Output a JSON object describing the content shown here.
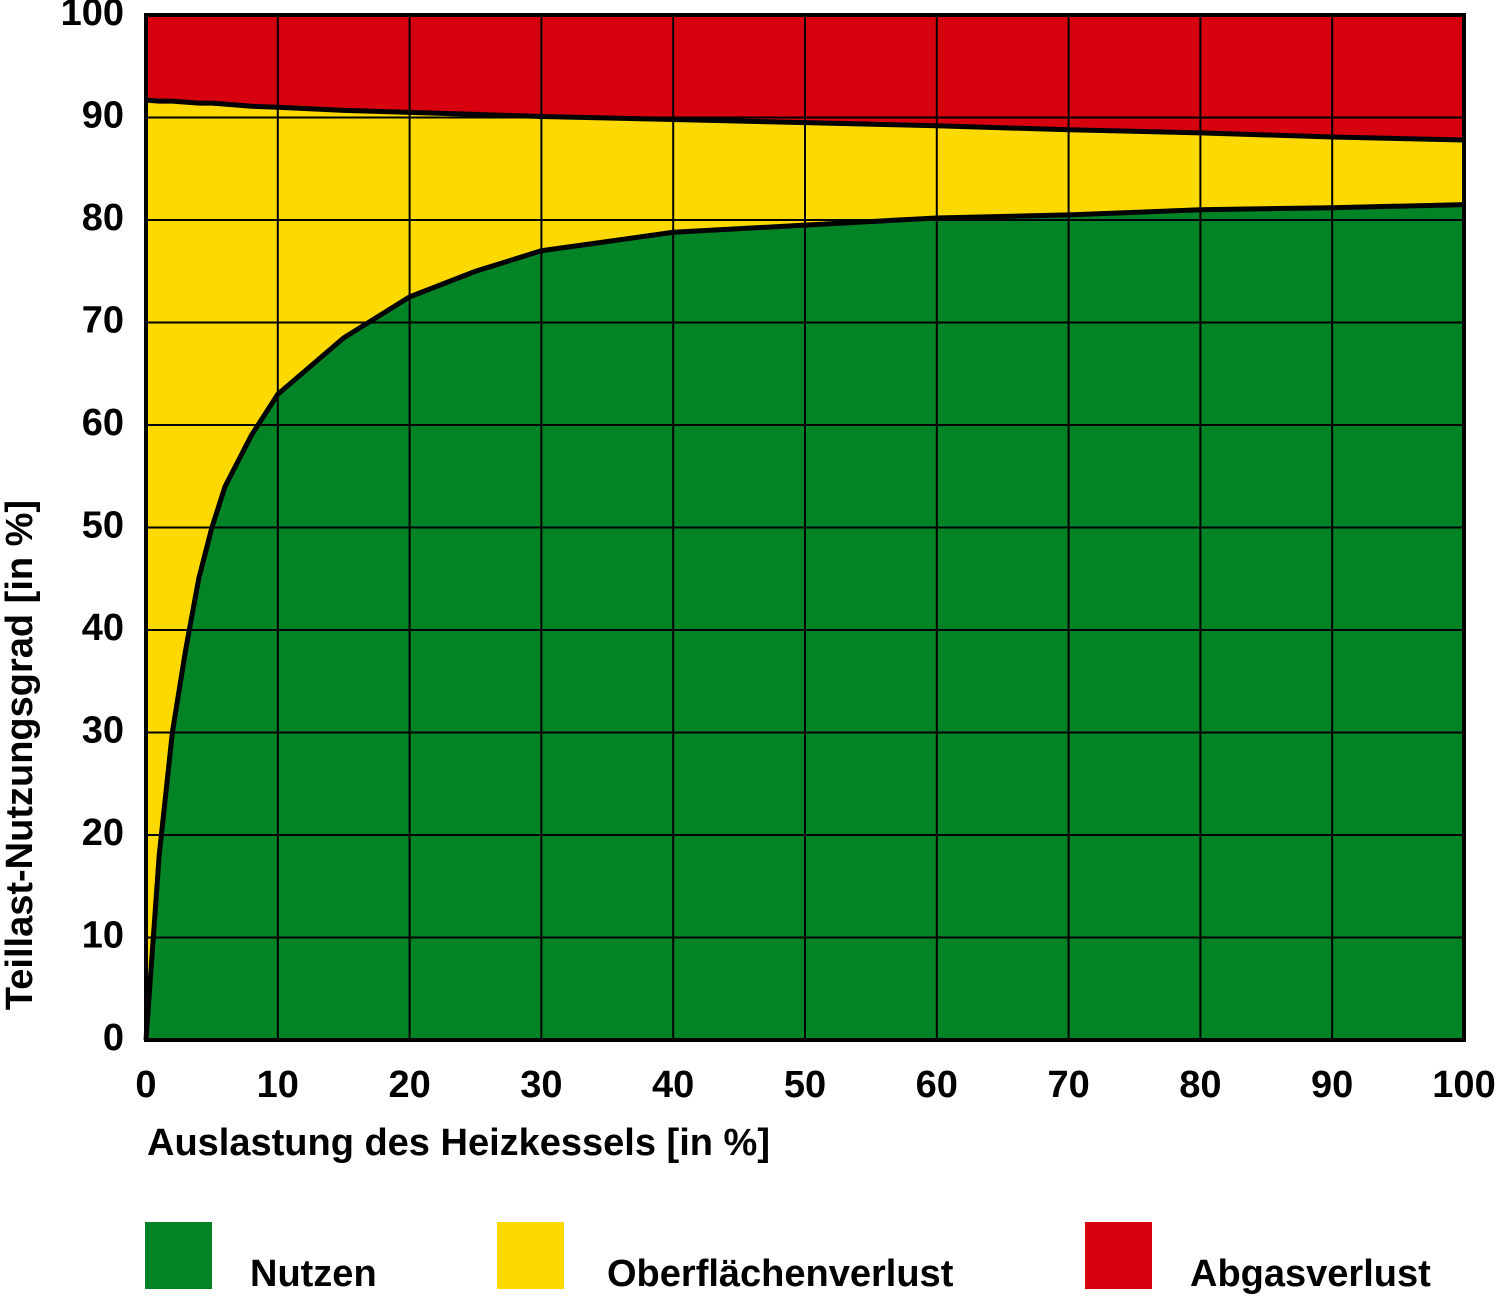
{
  "chart_data": {
    "type": "stacked-area",
    "x_label": "Auslastung des Heizkessels [in %]",
    "y_label": "Teillast-Nutzungsgrad [in %]",
    "x": [
      0,
      1,
      2,
      3,
      4,
      5,
      6,
      8,
      10,
      15,
      20,
      25,
      30,
      40,
      50,
      60,
      70,
      80,
      90,
      100
    ],
    "series": [
      {
        "name": "Nutzen",
        "color": "#028426",
        "values": [
          0,
          18,
          30,
          38,
          45,
          50,
          54,
          59,
          63,
          68.5,
          72.5,
          75,
          77,
          78.8,
          79.5,
          80.2,
          80.5,
          81,
          81.2,
          81.5
        ]
      },
      {
        "name": "Oberflächenverlust",
        "color": "#fdd900",
        "values": [
          91.7,
          73.6,
          61.6,
          53.5,
          46.4,
          41.4,
          37.3,
          32.1,
          28,
          22.2,
          18,
          15.3,
          13.1,
          11,
          10,
          9,
          8.3,
          7.5,
          6.9,
          6.3
        ]
      },
      {
        "name": "Abgasverlust",
        "color": "#d7000f",
        "values": [
          8.3,
          8.4,
          8.4,
          8.5,
          8.6,
          8.6,
          8.7,
          8.9,
          9,
          9.3,
          9.5,
          9.7,
          9.9,
          10.2,
          10.5,
          10.8,
          11.2,
          11.5,
          11.9,
          12.2
        ]
      }
    ],
    "xlim": [
      0,
      100
    ],
    "ylim": [
      0,
      100
    ],
    "xticks": [
      0,
      10,
      20,
      30,
      40,
      50,
      60,
      70,
      80,
      90,
      100
    ],
    "yticks": [
      0,
      10,
      20,
      30,
      40,
      50,
      60,
      70,
      80,
      90,
      100
    ],
    "grid": true
  }
}
